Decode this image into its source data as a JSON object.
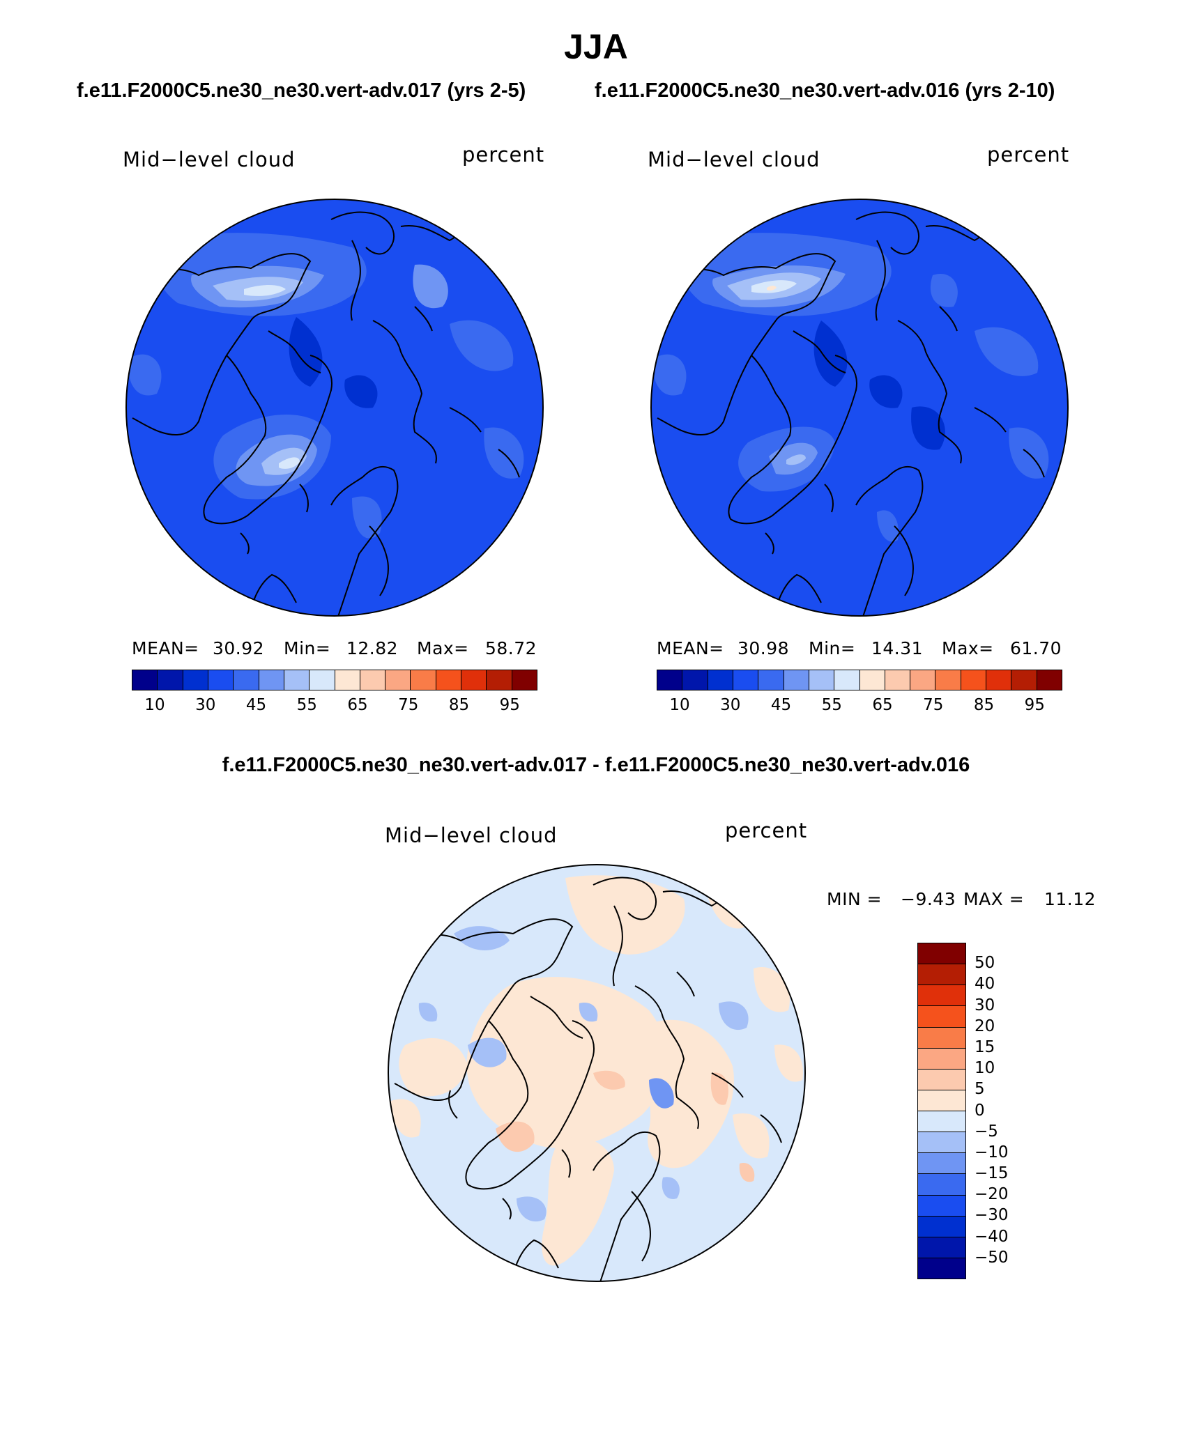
{
  "page": {
    "title": "JJA",
    "subtitle_left": "f.e11.F2000C5.ne30_ne30.vert-adv.017 (yrs 2-5)",
    "subtitle_right": "f.e11.F2000C5.ne30_ne30.vert-adv.016 (yrs 2-10)",
    "diff_title": "f.e11.F2000C5.ne30_ne30.vert-adv.017 - f.e11.F2000C5.ne30_ne30.vert-adv.016"
  },
  "panels": {
    "left": {
      "variable": "Mid−level cloud",
      "units": "percent",
      "stats": {
        "mean_label": "MEAN=",
        "mean": "30.92",
        "min_label": "Min=",
        "min": "12.82",
        "max_label": "Max=",
        "max": "58.72"
      }
    },
    "right": {
      "variable": "Mid−level cloud",
      "units": "percent",
      "stats": {
        "mean_label": "MEAN=",
        "mean": "30.98",
        "min_label": "Min=",
        "min": "14.31",
        "max_label": "Max=",
        "max": "61.70"
      }
    },
    "diff": {
      "variable": "Mid−level cloud",
      "units": "percent",
      "stats": {
        "min_label": "MIN =",
        "min": "−9.43",
        "max_label": "MAX =",
        "max": "11.12"
      }
    }
  },
  "colorbars": {
    "abs": {
      "colors": [
        "#00008b",
        "#0016ab",
        "#0030d0",
        "#1a4df0",
        "#3a6af0",
        "#6f95f3",
        "#a5c0f7",
        "#d8e8fb",
        "#fde7d4",
        "#fccaaf",
        "#fba783",
        "#f97c48",
        "#f5521c",
        "#e0300a",
        "#b41e04",
        "#800000"
      ],
      "labels": [
        "10",
        "30",
        "45",
        "55",
        "65",
        "75",
        "85",
        "95"
      ]
    },
    "diff": {
      "colors": [
        "#800000",
        "#b41e04",
        "#e0300a",
        "#f5521c",
        "#f97c48",
        "#fba783",
        "#fccaaf",
        "#fde7d4",
        "#d8e8fb",
        "#a5c0f7",
        "#6f95f3",
        "#3a6af0",
        "#1a4df0",
        "#0030d0",
        "#0016ab",
        "#00008b"
      ],
      "labels": [
        "50",
        "40",
        "30",
        "20",
        "15",
        "10",
        "5",
        "0",
        "−5",
        "−10",
        "−15",
        "−20",
        "−30",
        "−40",
        "−50"
      ]
    }
  }
}
